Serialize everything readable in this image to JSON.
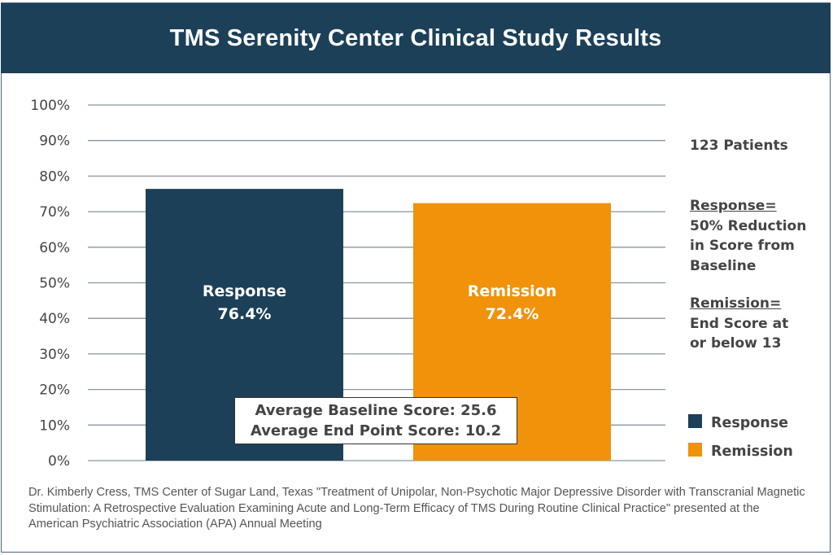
{
  "header": {
    "title": "TMS Serenity Center Clinical Study Results"
  },
  "colors": {
    "header_bg": "#1c4058",
    "response": "#1c4058",
    "remission": "#f0920a",
    "text": "#444444",
    "grid": "#8a969e"
  },
  "chart_data": {
    "type": "bar",
    "title": "TMS Serenity Center Clinical Study Results",
    "xlabel": "",
    "ylabel": "",
    "ylim": [
      0,
      100
    ],
    "yticks": [
      "0%",
      "10%",
      "20%",
      "30%",
      "40%",
      "50%",
      "60%",
      "70%",
      "80%",
      "90%",
      "100%"
    ],
    "grid": true,
    "categories": [
      "Response",
      "Remission"
    ],
    "values": [
      76.4,
      72.4
    ],
    "data_labels": [
      {
        "name": "Response",
        "value": "76.4%"
      },
      {
        "name": "Remission",
        "value": "72.4%"
      }
    ],
    "legend": {
      "placement": "right",
      "entries": [
        {
          "label": "Response",
          "color": "#1c4058"
        },
        {
          "label": "Remission",
          "color": "#f0920a"
        }
      ]
    },
    "annotations": [
      "Average Baseline Score: 25.6",
      "Average End Point Score: 10.2"
    ]
  },
  "side_notes": {
    "patients": "123 Patients",
    "response_heading": "Response=",
    "response_lines": [
      "50% Reduction",
      "in Score from",
      "Baseline"
    ],
    "remission_heading": "Remission=",
    "remission_lines": [
      "End Score at",
      "or below 13"
    ]
  },
  "infobox": {
    "line1": "Average Baseline Score: 25.6",
    "line2": "Average End Point Score: 10.2"
  },
  "footer": {
    "citation": "Dr. Kimberly Cress, TMS Center of Sugar Land, Texas \"Treatment of Unipolar, Non-Psychotic Major Depressive Disorder with Transcranial Magnetic Stimulation: A Retrospective Evaluation Examining Acute and Long-Term Efficacy of TMS During Routine Clinical Practice\" presented at the American Psychiatric Association (APA) Annual Meeting"
  }
}
